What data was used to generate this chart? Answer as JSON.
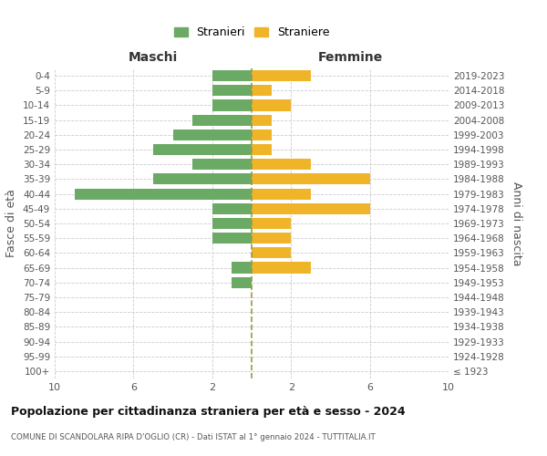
{
  "age_groups": [
    "100+",
    "95-99",
    "90-94",
    "85-89",
    "80-84",
    "75-79",
    "70-74",
    "65-69",
    "60-64",
    "55-59",
    "50-54",
    "45-49",
    "40-44",
    "35-39",
    "30-34",
    "25-29",
    "20-24",
    "15-19",
    "10-14",
    "5-9",
    "0-4"
  ],
  "birth_years": [
    "≤ 1923",
    "1924-1928",
    "1929-1933",
    "1934-1938",
    "1939-1943",
    "1944-1948",
    "1949-1953",
    "1954-1958",
    "1959-1963",
    "1964-1968",
    "1969-1973",
    "1974-1978",
    "1979-1983",
    "1984-1988",
    "1989-1993",
    "1994-1998",
    "1999-2003",
    "2004-2008",
    "2009-2013",
    "2014-2018",
    "2019-2023"
  ],
  "maschi": [
    0,
    0,
    0,
    0,
    0,
    0,
    1,
    1,
    0,
    2,
    2,
    2,
    9,
    5,
    3,
    5,
    4,
    3,
    2,
    2,
    2
  ],
  "femmine": [
    0,
    0,
    0,
    0,
    0,
    0,
    0,
    3,
    2,
    2,
    2,
    6,
    3,
    6,
    3,
    1,
    1,
    1,
    2,
    1,
    3
  ],
  "male_color": "#6aaa64",
  "female_color": "#f0b429",
  "background_color": "#ffffff",
  "grid_color": "#cccccc",
  "title": "Popolazione per cittadinanza straniera per età e sesso - 2024",
  "subtitle": "COMUNE DI SCANDOLARA RIPA D'OGLIO (CR) - Dati ISTAT al 1° gennaio 2024 - TUTTITALIA.IT",
  "xlabel_left": "Maschi",
  "xlabel_right": "Femmine",
  "ylabel_left": "Fasce di età",
  "ylabel_right": "Anni di nascita",
  "legend_male": "Stranieri",
  "legend_female": "Straniere",
  "xlim": 10,
  "center_line_color": "#999944"
}
